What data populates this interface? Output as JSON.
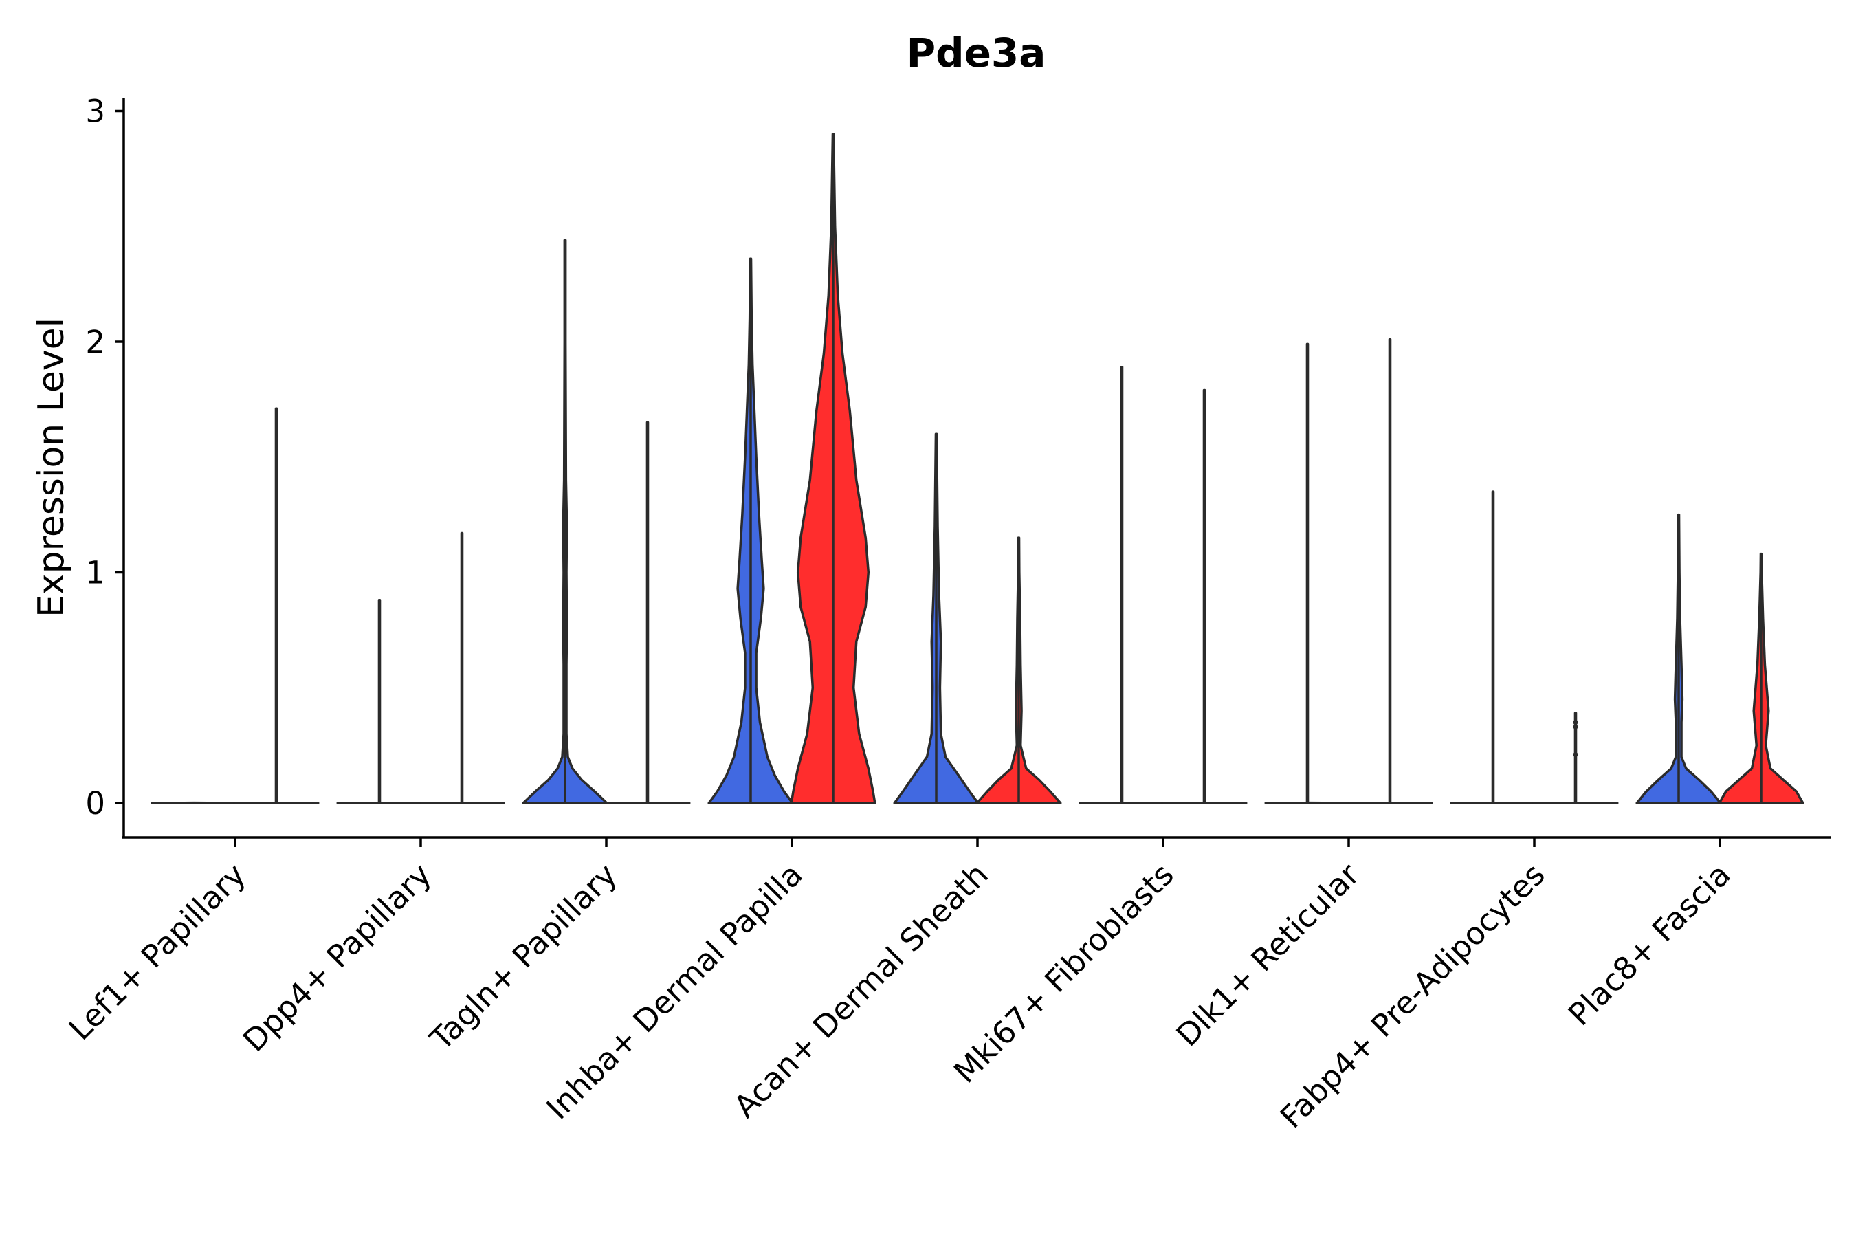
{
  "chart_data": {
    "type": "violin",
    "title": "Pde3a",
    "xlabel": "",
    "ylabel": "Expression Level",
    "ylim": [
      -0.15,
      3.05
    ],
    "yticks": [
      0,
      1,
      2,
      3
    ],
    "grid": false,
    "legend": "none",
    "colors": {
      "group_a": "#4169e1",
      "group_b": "#ff2d2d",
      "outline": "#2b2b2b"
    },
    "categories": [
      "Lef1+ Papillary",
      "Dpp4+ Papillary",
      "Tagln+ Papillary",
      "Inhba+ Dermal Papilla",
      "Acan+ Dermal Sheath",
      "Mki67+ Fibroblasts",
      "Dlk1+ Reticular",
      "Fabp4+ Pre-Adipocytes",
      "Plac8+ Fascia"
    ],
    "violins": [
      {
        "category": 0,
        "group": "a",
        "max": 0.0,
        "profile": [
          [
            0,
            0.45
          ],
          [
            0.001,
            0
          ]
        ]
      },
      {
        "category": 0,
        "group": "b",
        "max": 1.71,
        "profile": [
          [
            0,
            0.45
          ],
          [
            0.001,
            0.004
          ],
          [
            1.71,
            0.004
          ]
        ]
      },
      {
        "category": 1,
        "group": "a",
        "max": 0.88,
        "profile": [
          [
            0,
            0.45
          ],
          [
            0.001,
            0.004
          ],
          [
            0.88,
            0.004
          ]
        ]
      },
      {
        "category": 1,
        "group": "b",
        "max": 1.17,
        "profile": [
          [
            0,
            0.45
          ],
          [
            0.001,
            0.004
          ],
          [
            1.17,
            0.004
          ]
        ]
      },
      {
        "category": 2,
        "group": "a",
        "max": 2.44,
        "profile": [
          [
            0,
            0.45
          ],
          [
            0.05,
            0.32
          ],
          [
            0.1,
            0.18
          ],
          [
            0.15,
            0.08
          ],
          [
            0.2,
            0.03
          ],
          [
            0.3,
            0.015
          ],
          [
            0.6,
            0.015
          ],
          [
            0.75,
            0.02
          ],
          [
            1.0,
            0.015
          ],
          [
            1.2,
            0.02
          ],
          [
            1.4,
            0.01
          ],
          [
            2.0,
            0.005
          ],
          [
            2.44,
            0.005
          ]
        ]
      },
      {
        "category": 2,
        "group": "b",
        "max": 1.65,
        "profile": [
          [
            0,
            0.45
          ],
          [
            0.001,
            0.004
          ],
          [
            1.65,
            0.004
          ]
        ]
      },
      {
        "category": 3,
        "group": "a",
        "max": 2.36,
        "profile": [
          [
            0,
            0.45
          ],
          [
            0.05,
            0.36
          ],
          [
            0.12,
            0.26
          ],
          [
            0.2,
            0.18
          ],
          [
            0.35,
            0.1
          ],
          [
            0.5,
            0.06
          ],
          [
            0.65,
            0.06
          ],
          [
            0.8,
            0.11
          ],
          [
            0.93,
            0.14
          ],
          [
            1.05,
            0.12
          ],
          [
            1.25,
            0.09
          ],
          [
            1.5,
            0.06
          ],
          [
            1.7,
            0.04
          ],
          [
            1.9,
            0.02
          ],
          [
            2.1,
            0.01
          ],
          [
            2.36,
            0.004
          ]
        ]
      },
      {
        "category": 3,
        "group": "b",
        "max": 2.9,
        "profile": [
          [
            0,
            0.45
          ],
          [
            0.05,
            0.43
          ],
          [
            0.15,
            0.38
          ],
          [
            0.3,
            0.28
          ],
          [
            0.5,
            0.22
          ],
          [
            0.7,
            0.25
          ],
          [
            0.85,
            0.35
          ],
          [
            1.0,
            0.38
          ],
          [
            1.15,
            0.35
          ],
          [
            1.4,
            0.25
          ],
          [
            1.7,
            0.18
          ],
          [
            1.95,
            0.1
          ],
          [
            2.2,
            0.05
          ],
          [
            2.5,
            0.02
          ],
          [
            2.9,
            0.004
          ]
        ]
      },
      {
        "category": 4,
        "group": "a",
        "max": 1.6,
        "profile": [
          [
            0,
            0.45
          ],
          [
            0.05,
            0.36
          ],
          [
            0.12,
            0.24
          ],
          [
            0.2,
            0.1
          ],
          [
            0.3,
            0.05
          ],
          [
            0.5,
            0.04
          ],
          [
            0.7,
            0.05
          ],
          [
            0.9,
            0.03
          ],
          [
            1.2,
            0.015
          ],
          [
            1.6,
            0.004
          ]
        ]
      },
      {
        "category": 4,
        "group": "b",
        "max": 1.15,
        "profile": [
          [
            0,
            0.45
          ],
          [
            0.05,
            0.34
          ],
          [
            0.1,
            0.22
          ],
          [
            0.15,
            0.08
          ],
          [
            0.25,
            0.02
          ],
          [
            0.4,
            0.03
          ],
          [
            0.6,
            0.02
          ],
          [
            0.8,
            0.015
          ],
          [
            1.0,
            0.006
          ],
          [
            1.15,
            0.004
          ]
        ]
      },
      {
        "category": 5,
        "group": "a",
        "max": 1.89,
        "profile": [
          [
            0,
            0.45
          ],
          [
            0.001,
            0.004
          ],
          [
            1.89,
            0.004
          ]
        ]
      },
      {
        "category": 5,
        "group": "b",
        "max": 1.79,
        "profile": [
          [
            0,
            0.45
          ],
          [
            0.001,
            0.004
          ],
          [
            1.79,
            0.004
          ]
        ]
      },
      {
        "category": 6,
        "group": "a",
        "max": 1.99,
        "profile": [
          [
            0,
            0.45
          ],
          [
            0.001,
            0.004
          ],
          [
            1.99,
            0.004
          ]
        ]
      },
      {
        "category": 6,
        "group": "b",
        "max": 2.01,
        "profile": [
          [
            0,
            0.45
          ],
          [
            0.001,
            0.004
          ],
          [
            2.01,
            0.004
          ]
        ]
      },
      {
        "category": 7,
        "group": "a",
        "max": 1.35,
        "profile": [
          [
            0,
            0.45
          ],
          [
            0.001,
            0.004
          ],
          [
            1.35,
            0.004
          ]
        ]
      },
      {
        "category": 7,
        "group": "b",
        "max": 0.39,
        "profile": [
          [
            0,
            0.45
          ],
          [
            0.001,
            0.004
          ],
          [
            0.39,
            0.004
          ]
        ],
        "points": [
          0.35,
          0.33,
          0.21
        ]
      },
      {
        "category": 8,
        "group": "a",
        "max": 1.25,
        "profile": [
          [
            0,
            0.45
          ],
          [
            0.05,
            0.35
          ],
          [
            0.1,
            0.22
          ],
          [
            0.15,
            0.08
          ],
          [
            0.2,
            0.03
          ],
          [
            0.35,
            0.03
          ],
          [
            0.45,
            0.04
          ],
          [
            0.6,
            0.03
          ],
          [
            0.8,
            0.015
          ],
          [
            1.0,
            0.008
          ],
          [
            1.25,
            0.004
          ]
        ]
      },
      {
        "category": 8,
        "group": "b",
        "max": 1.08,
        "profile": [
          [
            0,
            0.45
          ],
          [
            0.05,
            0.38
          ],
          [
            0.1,
            0.24
          ],
          [
            0.15,
            0.1
          ],
          [
            0.25,
            0.05
          ],
          [
            0.4,
            0.08
          ],
          [
            0.5,
            0.06
          ],
          [
            0.6,
            0.04
          ],
          [
            0.8,
            0.02
          ],
          [
            1.0,
            0.006
          ],
          [
            1.08,
            0.004
          ]
        ]
      }
    ]
  }
}
